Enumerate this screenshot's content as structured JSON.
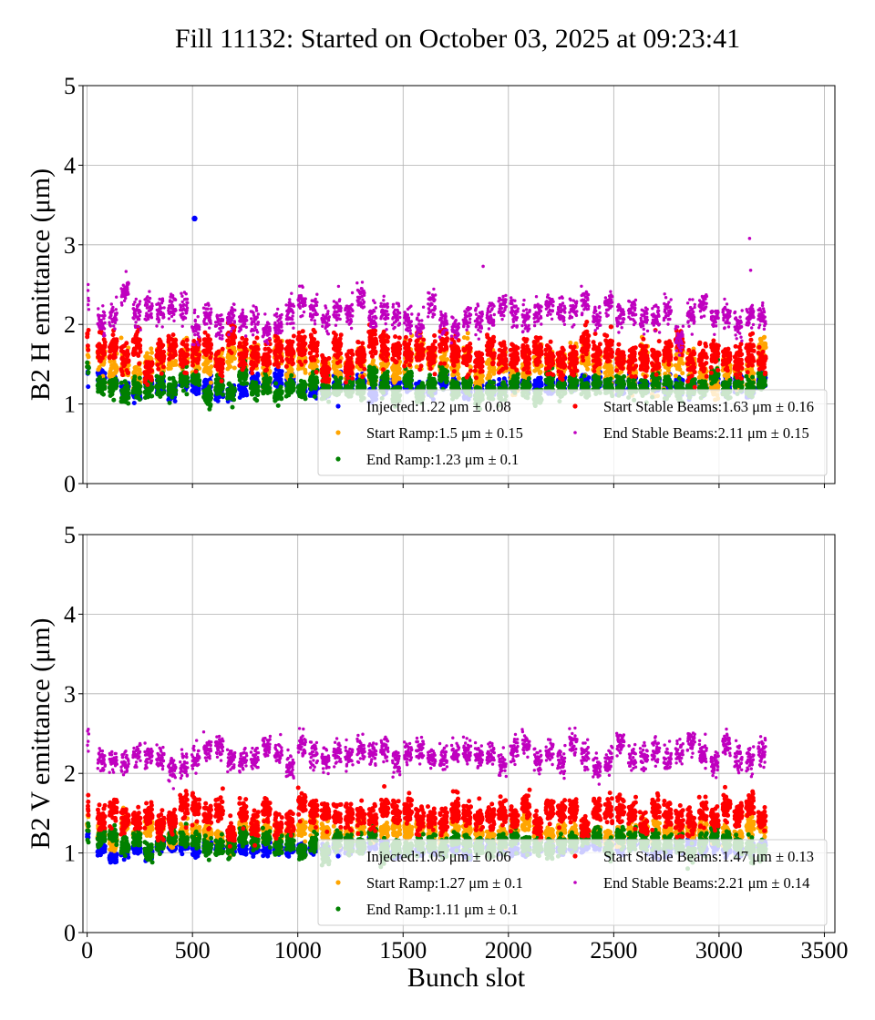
{
  "title": "Fill 11132: Started on October 03, 2025 at 09:23:41",
  "colors": {
    "injected": "#0000ff",
    "start_ramp": "#ffa500",
    "end_ramp": "#008000",
    "start_stable": "#ff0000",
    "end_stable": "#bf00bf",
    "grid": "#b0b0b0",
    "axes": "#000000"
  },
  "chart_data": [
    {
      "type": "scatter",
      "panel": "top",
      "xlabel": "",
      "ylabel": "B2 H emittance (μm)",
      "xlim": [
        -20,
        3550
      ],
      "ylim": [
        0,
        5
      ],
      "xticks": [
        0,
        500,
        1000,
        1500,
        2000,
        2500,
        3000,
        3500
      ],
      "xtick_labels_visible": false,
      "yticks": [
        0,
        1,
        2,
        3,
        4,
        5
      ],
      "grid": true,
      "legend_position": "lower-right",
      "bunch_range": [
        0,
        3240
      ],
      "series": [
        {
          "key": "injected",
          "name": "Injected:1.22 μm ± 0.08",
          "mean": 1.22,
          "std": 0.08,
          "outliers": [
            {
              "x": 510,
              "y": 3.33
            }
          ]
        },
        {
          "key": "start_ramp",
          "name": "Start Ramp:1.5 μm ± 0.15",
          "mean": 1.5,
          "std": 0.15
        },
        {
          "key": "end_ramp",
          "name": "End Ramp:1.23 μm ± 0.1",
          "mean": 1.23,
          "std": 0.1
        },
        {
          "key": "start_stable",
          "name": "Start Stable Beams:1.63 μm ± 0.16",
          "mean": 1.63,
          "std": 0.16
        },
        {
          "key": "end_stable",
          "name": "End Stable Beams:2.11 μm ± 0.15",
          "mean": 2.11,
          "std": 0.15,
          "outliers": [
            {
              "x": 1880,
              "y": 2.73
            },
            {
              "x": 3145,
              "y": 3.08
            },
            {
              "x": 3150,
              "y": 2.68
            }
          ]
        }
      ]
    },
    {
      "type": "scatter",
      "panel": "bottom",
      "xlabel": "Bunch slot",
      "ylabel": "B2 V emittance (μm)",
      "xlim": [
        -20,
        3550
      ],
      "ylim": [
        0,
        5
      ],
      "xticks": [
        0,
        500,
        1000,
        1500,
        2000,
        2500,
        3000,
        3500
      ],
      "xtick_labels_visible": true,
      "yticks": [
        0,
        1,
        2,
        3,
        4,
        5
      ],
      "grid": true,
      "legend_position": "lower-right",
      "bunch_range": [
        0,
        3240
      ],
      "series": [
        {
          "key": "injected",
          "name": "Injected:1.05 μm ± 0.06",
          "mean": 1.05,
          "std": 0.06
        },
        {
          "key": "start_ramp",
          "name": "Start Ramp:1.27 μm ± 0.1",
          "mean": 1.27,
          "std": 0.1
        },
        {
          "key": "end_ramp",
          "name": "End Ramp:1.11 μm ± 0.1",
          "mean": 1.11,
          "std": 0.1
        },
        {
          "key": "start_stable",
          "name": "Start Stable Beams:1.47 μm ± 0.13",
          "mean": 1.47,
          "std": 0.13
        },
        {
          "key": "end_stable",
          "name": "End Stable Beams:2.21 μm ± 0.14",
          "mean": 2.21,
          "std": 0.14
        }
      ]
    }
  ]
}
